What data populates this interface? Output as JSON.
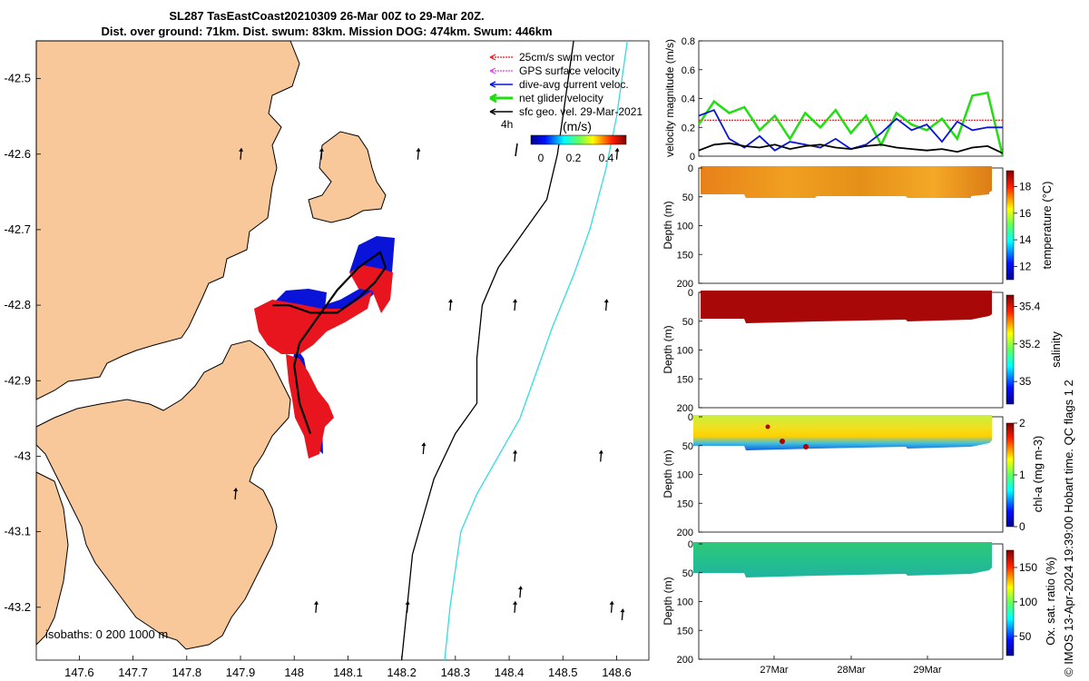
{
  "title": {
    "line1": "SL287 TasEastCoast20210309 26-Mar 00Z to 29-Mar 20Z.",
    "line2": "Dist. over ground: 71km. Dist. swum: 83km. Mission DOG: 474km. Swum: 446km"
  },
  "credit": "© IMOS 13-Apr-2024 19:39:00 Hobart time. QC flags 1  2",
  "colors": {
    "land": "#f8c89a",
    "swim_vector": "#e8141e",
    "gps_velocity": "#e040e0",
    "dive_avg": "#0a14d8",
    "net_velocity": "#22dd11",
    "sfc_geo": "#000000",
    "isobath_200": "#000000",
    "isobath_1000": "#33dddd"
  },
  "map": {
    "legend": [
      {
        "label": "25cm/s swim vector",
        "icon": "red-dotted-arrow"
      },
      {
        "label": "GPS surface velocity",
        "icon": "magenta-dotted-arrow"
      },
      {
        "label": "dive-avg current veloc.",
        "icon": "blue-arrow"
      },
      {
        "label": "net glider velocity",
        "icon": "green-arrow"
      },
      {
        "label": "sfc geo. vel. 29-Mar-2021",
        "icon": "black-arrow"
      }
    ],
    "age_label": "4h",
    "colorbar_title": "(m/s)",
    "colorbar_ticks": [
      "0",
      "0.2",
      "0.4"
    ],
    "isobath_label": "isobaths: 0   200  1000 m"
  },
  "chart_data": [
    {
      "type": "scatter",
      "name": "map",
      "xlim": [
        147.52,
        148.66
      ],
      "ylim": [
        -43.27,
        -42.45
      ],
      "x_ticks": [
        "147.6",
        "147.7",
        "147.8",
        "147.9",
        "148",
        "148.1",
        "148.2",
        "148.3",
        "148.4",
        "148.5",
        "148.6"
      ],
      "y_ticks": [
        "-42.5",
        "-42.6",
        "-42.7",
        "-42.8",
        "-42.9",
        "-43",
        "-43.1",
        "-43.2"
      ],
      "glider_track": {
        "x": [
          147.96,
          147.99,
          148.03,
          148.08,
          148.12,
          148.15,
          148.17,
          148.16,
          148.12,
          148.08,
          148.04,
          148.01,
          148.0,
          148.01,
          148.03
        ],
        "y": [
          -42.8,
          -42.8,
          -42.81,
          -42.81,
          -42.79,
          -42.77,
          -42.75,
          -42.73,
          -42.75,
          -42.78,
          -42.82,
          -42.85,
          -42.88,
          -42.93,
          -42.97
        ]
      },
      "isobath_200": {
        "x": [
          148.52,
          148.51,
          148.49,
          148.47,
          148.43,
          148.38,
          148.35,
          148.34,
          148.34,
          148.3,
          148.26,
          148.24,
          148.22,
          148.21,
          148.2
        ],
        "y": [
          -42.45,
          -42.5,
          -42.6,
          -42.66,
          -42.7,
          -42.75,
          -42.8,
          -42.87,
          -42.93,
          -42.97,
          -43.03,
          -43.08,
          -43.13,
          -43.2,
          -43.27
        ]
      },
      "isobath_1000": {
        "x": [
          148.62,
          148.6,
          148.58,
          148.55,
          148.52,
          148.48,
          148.45,
          148.42,
          148.38,
          148.34,
          148.31,
          148.3,
          148.29,
          148.28
        ],
        "y": [
          -42.45,
          -42.55,
          -42.62,
          -42.7,
          -42.76,
          -42.83,
          -42.89,
          -42.95,
          -43.0,
          -43.05,
          -43.1,
          -43.15,
          -43.2,
          -43.27
        ]
      },
      "sfc_geo_vectors": {
        "x": [
          147.9,
          148.05,
          148.23,
          148.6,
          148.29,
          148.41,
          148.58,
          148.24,
          148.41,
          148.57,
          148.04,
          148.21,
          148.41,
          148.59,
          147.89,
          148.42,
          148.61
        ],
        "y": [
          -42.6,
          -42.6,
          -42.6,
          -42.6,
          -42.8,
          -42.8,
          -42.8,
          -42.99,
          -43.0,
          -43.0,
          -43.2,
          -43.2,
          -43.2,
          -43.2,
          -43.05,
          -43.18,
          -43.21
        ]
      }
    },
    {
      "type": "line",
      "name": "velocity magnitude",
      "ylabel": "velocity magnitude (m/s)",
      "ylim": [
        0,
        0.8
      ],
      "y_ticks": [
        "0",
        "0.2",
        "0.4",
        "0.6",
        "0.8"
      ],
      "x": [
        0,
        0.05,
        0.1,
        0.15,
        0.2,
        0.25,
        0.3,
        0.35,
        0.4,
        0.45,
        0.5,
        0.55,
        0.6,
        0.65,
        0.7,
        0.75,
        0.8,
        0.85,
        0.9,
        0.95,
        1.0
      ],
      "series": [
        {
          "name": "25cm/s swim vector",
          "color": "#e8141e",
          "values": [
            0.25,
            0.25,
            0.25,
            0.25,
            0.25,
            0.25,
            0.25,
            0.25,
            0.25,
            0.25,
            0.25,
            0.25,
            0.25,
            0.25,
            0.25,
            0.25,
            0.25,
            0.25,
            0.25,
            0.25,
            0.25
          ]
        },
        {
          "name": "net glider velocity",
          "color": "#22dd11",
          "values": [
            0.22,
            0.38,
            0.3,
            0.34,
            0.18,
            0.28,
            0.12,
            0.3,
            0.2,
            0.32,
            0.16,
            0.28,
            0.08,
            0.3,
            0.22,
            0.18,
            0.26,
            0.12,
            0.42,
            0.44,
            0.0
          ]
        },
        {
          "name": "dive-avg current veloc.",
          "color": "#0a14d8",
          "values": [
            0.28,
            0.32,
            0.12,
            0.06,
            0.14,
            0.04,
            0.1,
            0.08,
            0.06,
            0.12,
            0.05,
            0.08,
            0.16,
            0.26,
            0.18,
            0.22,
            0.1,
            0.24,
            0.18,
            0.2,
            0.2
          ]
        },
        {
          "name": "sfc geo. vel. 29-Mar-2021",
          "color": "#000000",
          "values": [
            0.04,
            0.08,
            0.09,
            0.07,
            0.06,
            0.08,
            0.05,
            0.07,
            0.08,
            0.06,
            0.05,
            0.07,
            0.08,
            0.06,
            0.05,
            0.04,
            0.05,
            0.03,
            0.06,
            0.07,
            0.02
          ]
        }
      ]
    },
    {
      "type": "heatmap",
      "name": "temperature",
      "ylabel": "Depth (m)",
      "colorbar_label": "temperature (°C)",
      "colorbar_ticks": [
        "12",
        "14",
        "16",
        "18"
      ],
      "y_ticks": [
        "0",
        "50",
        "100",
        "150",
        "200"
      ],
      "ylim": [
        0,
        200
      ]
    },
    {
      "type": "heatmap",
      "name": "salinity",
      "ylabel": "Depth (m)",
      "colorbar_label": "salinity",
      "colorbar_ticks": [
        "35",
        "35.2",
        "35.4"
      ],
      "y_ticks": [
        "0",
        "50",
        "100",
        "150",
        "200"
      ],
      "ylim": [
        0,
        200
      ]
    },
    {
      "type": "heatmap",
      "name": "chlorophyll",
      "ylabel": "Depth (m)",
      "colorbar_label": "chl-a (mg m-3)",
      "colorbar_ticks": [
        "0",
        "1",
        "2"
      ],
      "y_ticks": [
        "0",
        "50",
        "100",
        "150",
        "200"
      ],
      "ylim": [
        0,
        200
      ]
    },
    {
      "type": "heatmap",
      "name": "oxygen",
      "ylabel": "Depth (m)",
      "colorbar_label": "Ox. sat. ratio (%)",
      "colorbar_ticks": [
        "50",
        "100",
        "150"
      ],
      "y_ticks": [
        "0",
        "50",
        "100",
        "150",
        "200"
      ],
      "ylim": [
        0,
        200
      ],
      "x_ticks": [
        "27Mar",
        "28Mar",
        "29Mar"
      ]
    }
  ]
}
